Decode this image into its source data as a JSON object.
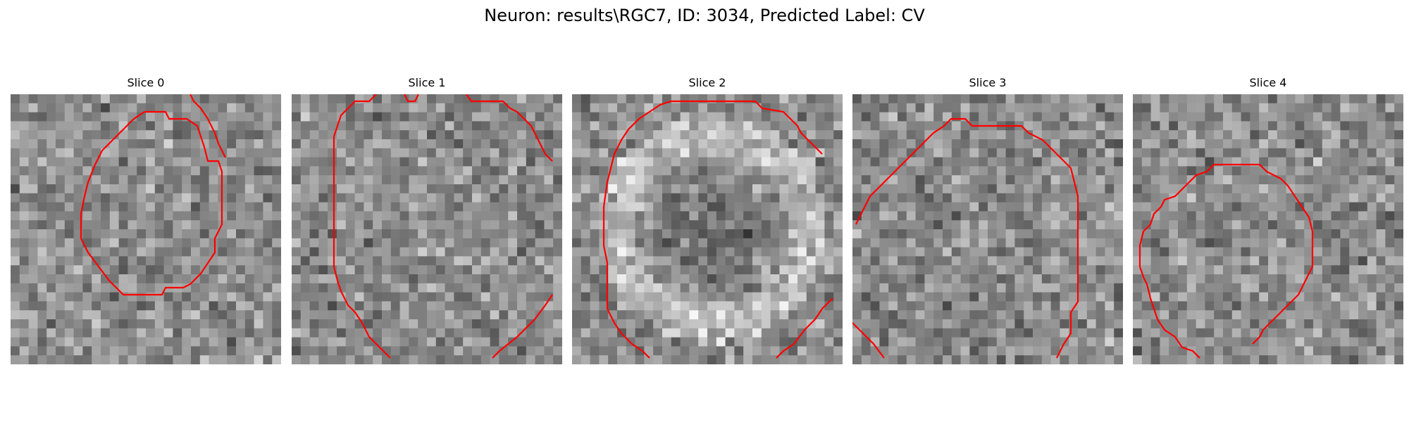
{
  "figure": {
    "title": "Neuron: results\\RGC7, ID: 3034, Predicted Label: CV"
  },
  "slices": [
    {
      "title": "Slice 0",
      "contour_shape": "closed-ring"
    },
    {
      "title": "Slice 1",
      "contour_shape": "open-arcs"
    },
    {
      "title": "Slice 2",
      "contour_shape": "open-arc"
    },
    {
      "title": "Slice 3",
      "contour_shape": "open-arc"
    },
    {
      "title": "Slice 4",
      "contour_shape": "open-arc"
    }
  ],
  "colors": {
    "contour": "#ff0000",
    "background": "#ffffff",
    "colormap": "grayscale"
  }
}
